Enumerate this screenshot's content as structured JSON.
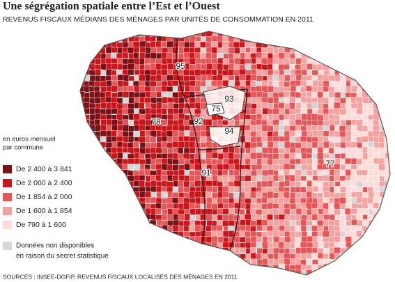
{
  "title": "Une ségrégation spatiale entre l’Est et l’Ouest",
  "subtitle": "REVENUS FISCAUX MÉDIANS DES MÉNAGES PAR UNITÉS DE CONSOMMATION EN 2011",
  "legend": {
    "title": [
      "en euros mensuel",
      "par commune"
    ],
    "items": [
      {
        "label": "De 2 400 à 3 841",
        "color": "#7b1016"
      },
      {
        "label": "De 2 000 à 2 400",
        "color": "#c8161d"
      },
      {
        "label": "De 1 854 à 2 000",
        "color": "#e2575a"
      },
      {
        "label": "De 1 600 à 1 854",
        "color": "#f2a2a0"
      },
      {
        "label": "De 790 à 1 600",
        "color": "#fbdcda"
      }
    ],
    "na": {
      "label": [
        "Données non disponibles",
        "en raison du secret statistique"
      ],
      "color": "#d6d6d6"
    }
  },
  "departments": [
    "95",
    "78",
    "92",
    "75",
    "93",
    "94",
    "91",
    "77"
  ],
  "source": "SOURCES : INSEE-DGFIP, REVENUS FISCAUX LOCALISÉS DES MÉNAGES EN 2011"
}
